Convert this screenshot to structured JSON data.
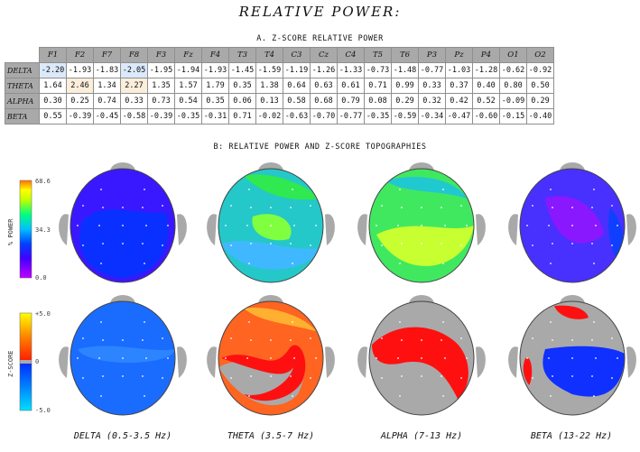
{
  "title": "RELATIVE POWER:",
  "section_a": "A. Z-SCORE RELATIVE POWER",
  "section_b": "B: RELATIVE POWER AND Z-SCORE TOPOGRAPHIES",
  "colors": {
    "header_bg": "#a9a9a9",
    "negative_highlight": "#dbe9fb",
    "positive_highlight": "#fbeeda",
    "head_gray": "#a9a9a9"
  },
  "chart_data": [
    {
      "type": "table",
      "title": "A. Z-SCORE RELATIVE POWER",
      "columns": [
        "F1",
        "F2",
        "F7",
        "F8",
        "F3",
        "Fz",
        "F4",
        "T3",
        "T4",
        "C3",
        "Cz",
        "C4",
        "T5",
        "T6",
        "P3",
        "Pz",
        "P4",
        "O1",
        "O2"
      ],
      "rows": [
        {
          "band": "DELTA",
          "values": [
            "-2.20",
            "-1.93",
            "-1.83",
            "-2.05",
            "-1.95",
            "-1.94",
            "-1.93",
            "-1.45",
            "-1.59",
            "-1.19",
            "-1.26",
            "-1.33",
            "-0.73",
            "-1.48",
            "-0.77",
            "-1.03",
            "-1.28",
            "-0.62",
            "-0.92"
          ],
          "highlight": [
            0,
            3
          ]
        },
        {
          "band": "THETA",
          "values": [
            "1.64",
            "2.46",
            "1.34",
            "2.27",
            "1.35",
            "1.57",
            "1.79",
            "0.35",
            "1.38",
            "0.64",
            "0.63",
            "0.61",
            "0.71",
            "0.99",
            "0.33",
            "0.37",
            "0.40",
            "0.80",
            "0.50"
          ],
          "highlight": [
            1,
            3
          ]
        },
        {
          "band": "ALPHA",
          "values": [
            "0.30",
            "0.25",
            "0.74",
            "0.33",
            "0.73",
            "0.54",
            "0.35",
            "0.06",
            "0.13",
            "0.58",
            "0.68",
            "0.79",
            "0.08",
            "0.29",
            "0.32",
            "0.42",
            "0.52",
            "-0.09",
            "0.29"
          ],
          "highlight": []
        },
        {
          "band": "BETA",
          "values": [
            "0.55",
            "-0.39",
            "-0.45",
            "-0.58",
            "-0.39",
            "-0.35",
            "-0.31",
            "0.71",
            "-0.02",
            "-0.63",
            "-0.70",
            "-0.77",
            "-0.35",
            "-0.59",
            "-0.34",
            "-0.47",
            "-0.60",
            "-0.15",
            "-0.40"
          ],
          "highlight": []
        }
      ]
    },
    {
      "type": "heatmap",
      "title": "B: RELATIVE POWER AND Z-SCORE TOPOGRAPHIES",
      "bands": [
        "DELTA (0.5-3.5 Hz)",
        "THETA (3.5-7 Hz)",
        "ALPHA (7-13 Hz)",
        "BETA (13-22 Hz)"
      ],
      "power_scale": {
        "label": "% POWER",
        "ticks": [
          "68.6",
          "34.3",
          "0.0"
        ],
        "range": [
          0,
          68.6
        ]
      },
      "zscore_scale": {
        "label": "Z-SCORE",
        "ticks": [
          "+5.0",
          "0",
          "-5.0"
        ],
        "range": [
          -5,
          5
        ]
      }
    }
  ]
}
